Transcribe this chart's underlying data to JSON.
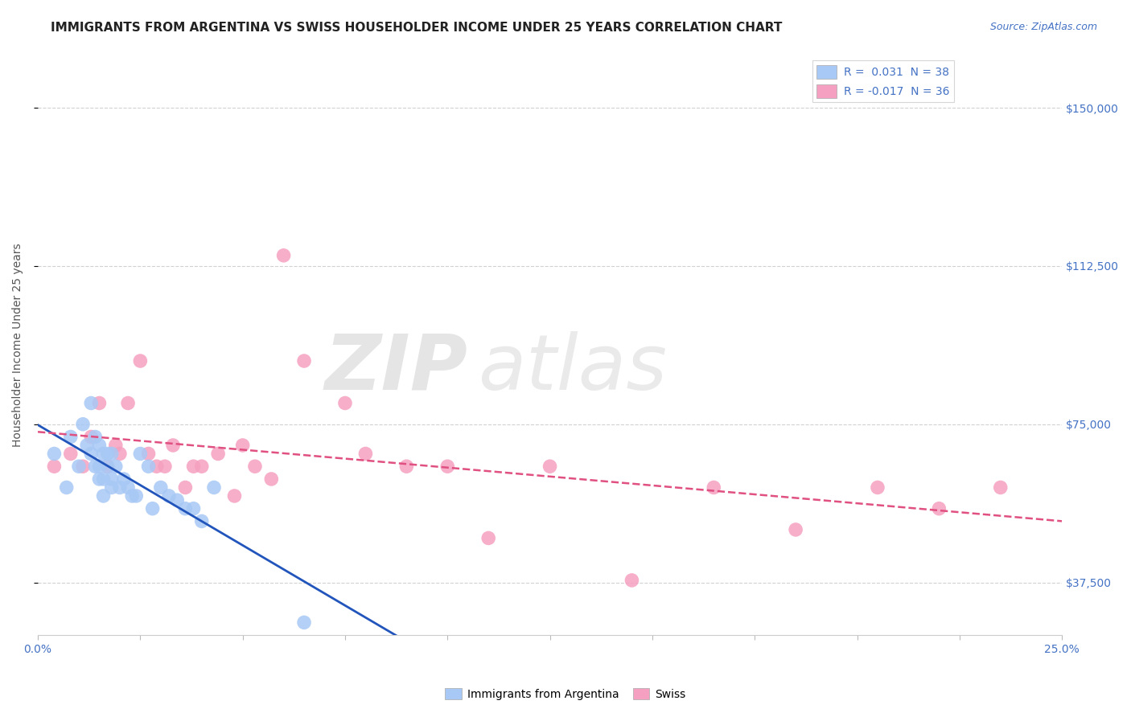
{
  "title": "IMMIGRANTS FROM ARGENTINA VS SWISS HOUSEHOLDER INCOME UNDER 25 YEARS CORRELATION CHART",
  "source_text": "Source: ZipAtlas.com",
  "ylabel": "Householder Income Under 25 years",
  "xlim": [
    0.0,
    0.25
  ],
  "ylim": [
    25000,
    162500
  ],
  "xticks": [
    0.0,
    0.025,
    0.05,
    0.075,
    0.1,
    0.125,
    0.15,
    0.175,
    0.2,
    0.225,
    0.25
  ],
  "ytick_positions": [
    37500,
    75000,
    112500,
    150000
  ],
  "ytick_labels": [
    "$37,500",
    "$75,000",
    "$112,500",
    "$150,000"
  ],
  "legend_entry1": "R =  0.031  N = 38",
  "legend_entry2": "R = -0.017  N = 36",
  "argentina_color": "#a8c8f5",
  "swiss_color": "#f5a0c0",
  "argentina_line_color": "#2255bb",
  "swiss_line_color": "#e05080",
  "background_color": "#ffffff",
  "grid_color": "#cccccc",
  "title_color": "#222222",
  "tick_color": "#4472c4",
  "argentina_x": [
    0.004,
    0.007,
    0.008,
    0.01,
    0.011,
    0.012,
    0.013,
    0.013,
    0.014,
    0.014,
    0.015,
    0.015,
    0.015,
    0.016,
    0.016,
    0.016,
    0.017,
    0.017,
    0.018,
    0.018,
    0.018,
    0.019,
    0.02,
    0.021,
    0.022,
    0.023,
    0.024,
    0.025,
    0.027,
    0.028,
    0.03,
    0.032,
    0.034,
    0.036,
    0.038,
    0.04,
    0.043,
    0.065
  ],
  "argentina_y": [
    68000,
    60000,
    72000,
    65000,
    75000,
    70000,
    80000,
    68000,
    65000,
    72000,
    62000,
    70000,
    65000,
    62000,
    68000,
    58000,
    68000,
    65000,
    60000,
    68000,
    62000,
    65000,
    60000,
    62000,
    60000,
    58000,
    58000,
    68000,
    65000,
    55000,
    60000,
    58000,
    57000,
    55000,
    55000,
    52000,
    60000,
    28000
  ],
  "swiss_x": [
    0.004,
    0.008,
    0.011,
    0.013,
    0.015,
    0.017,
    0.019,
    0.02,
    0.022,
    0.025,
    0.027,
    0.029,
    0.031,
    0.033,
    0.036,
    0.038,
    0.04,
    0.044,
    0.048,
    0.05,
    0.053,
    0.057,
    0.06,
    0.065,
    0.075,
    0.08,
    0.09,
    0.1,
    0.11,
    0.125,
    0.145,
    0.165,
    0.185,
    0.205,
    0.22,
    0.235
  ],
  "swiss_y": [
    65000,
    68000,
    65000,
    72000,
    80000,
    65000,
    70000,
    68000,
    80000,
    90000,
    68000,
    65000,
    65000,
    70000,
    60000,
    65000,
    65000,
    68000,
    58000,
    70000,
    65000,
    62000,
    115000,
    90000,
    80000,
    68000,
    65000,
    65000,
    48000,
    65000,
    38000,
    60000,
    50000,
    60000,
    55000,
    60000
  ],
  "title_fontsize": 11,
  "axis_label_fontsize": 10,
  "tick_fontsize": 10,
  "legend_fontsize": 10,
  "source_fontsize": 9
}
